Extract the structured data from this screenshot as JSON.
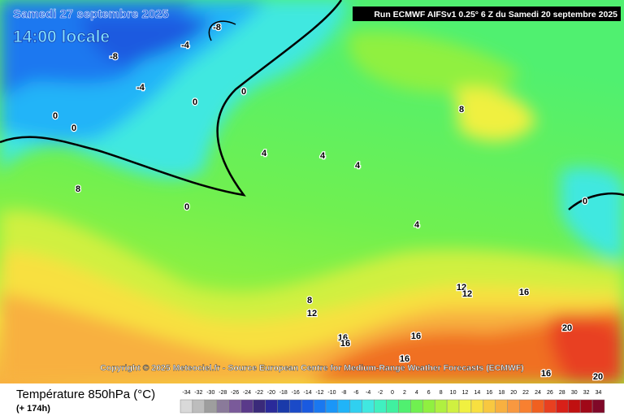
{
  "header": {
    "date": "Samedi 27 septembre 2025",
    "time": "14:00 locale",
    "run": "Run ECMWF AIFSv1 0.25° 6 Z du Samedi 20 septembre 2025"
  },
  "copyright": "Copyright © 2025 Meteociel.fr - Source European Centre for Medium-Range Weather Forecasts (ECMWF)",
  "contour_labels": [
    "-8",
    "-8",
    "-4",
    "-4",
    "0",
    "0",
    "0",
    "0",
    "0",
    "0",
    "4",
    "4",
    "4",
    "4",
    "8",
    "8",
    "8",
    "12",
    "12",
    "12",
    "16",
    "16",
    "16",
    "16",
    "16",
    "16",
    "20",
    "20"
  ],
  "footer": {
    "title": "Température 850hPa (°C)",
    "lead": "(+ 174h)"
  },
  "scale": {
    "values": [
      -34,
      -32,
      -30,
      -28,
      -26,
      -24,
      -22,
      -20,
      -18,
      -16,
      -14,
      -12,
      -10,
      -8,
      -6,
      -4,
      -2,
      0,
      2,
      4,
      6,
      8,
      10,
      12,
      14,
      16,
      18,
      20,
      22,
      24,
      26,
      28,
      30,
      32,
      34
    ],
    "colors": [
      "#d9d9d9",
      "#bdbdbd",
      "#9e9e9e",
      "#8a7a9a",
      "#7a5a9a",
      "#5a3a8a",
      "#3a2a7a",
      "#2a2a9a",
      "#1a3aaa",
      "#1a4ac8",
      "#1a5ae0",
      "#1a78f0",
      "#1a96f8",
      "#20b4f8",
      "#30d0f0",
      "#40e8e0",
      "#40f0c0",
      "#40f0a0",
      "#50f070",
      "#70f050",
      "#90f040",
      "#b0f040",
      "#d0f040",
      "#f0f040",
      "#f8e040",
      "#f8c840",
      "#f8b040",
      "#f89840",
      "#f88030",
      "#f06020",
      "#e84020",
      "#d82018",
      "#c01010",
      "#a00818",
      "#800828"
    ]
  }
}
